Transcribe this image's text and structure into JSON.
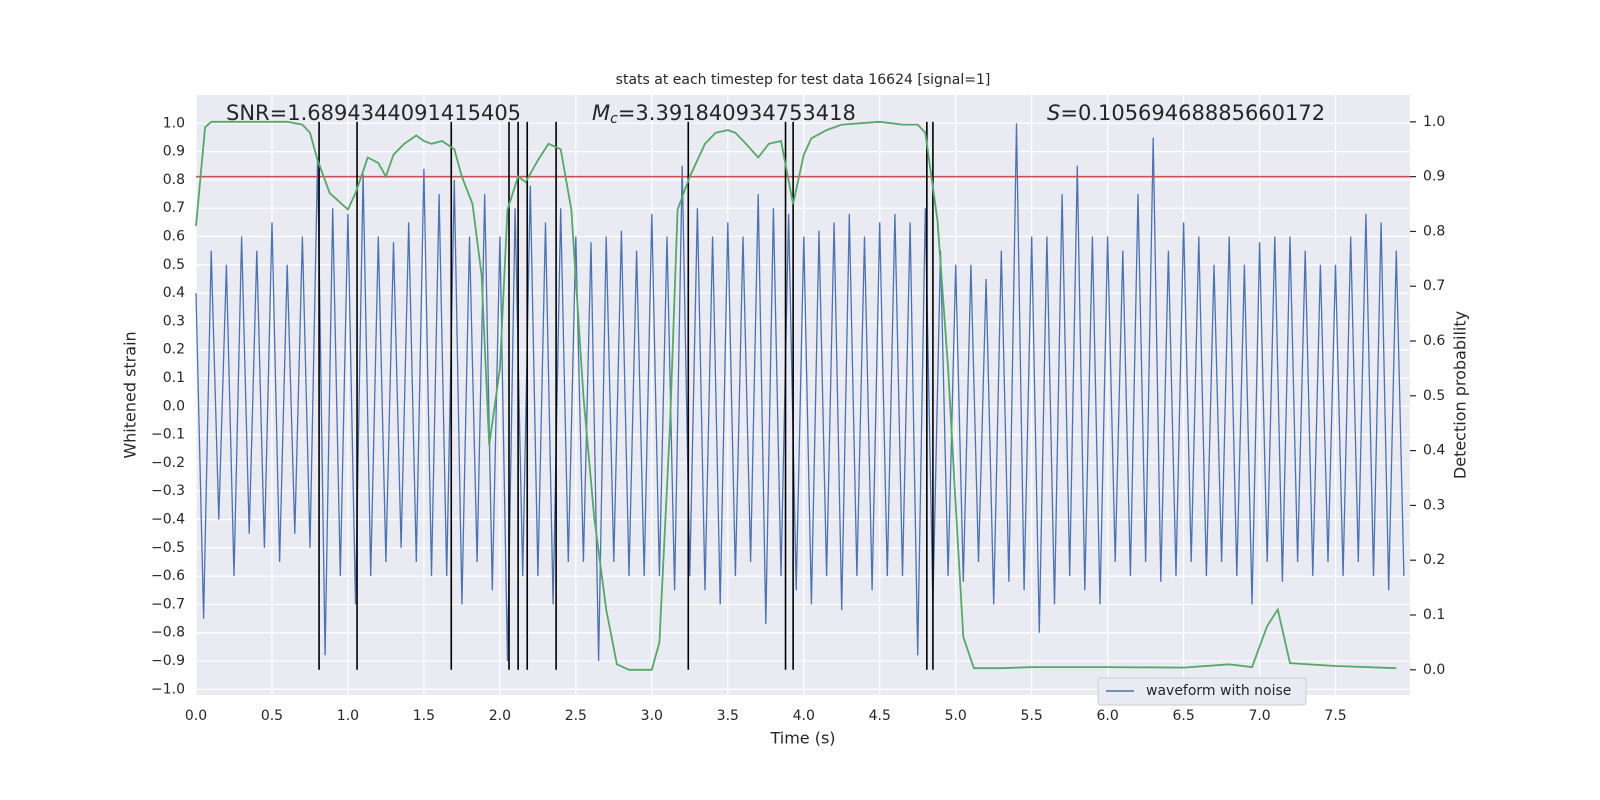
{
  "chart_data": {
    "type": "line",
    "title": "stats at each timestep for test data 16624 [signal=1]",
    "xlabel": "Time (s)",
    "ylabel": "Whitened strain",
    "y2label": "Detection probability",
    "annotations": {
      "snr": "SNR=1.6894344091415405",
      "mc": {
        "symbol": "M",
        "subscript": "c",
        "text": "=3.391840934753418"
      },
      "s": {
        "symbol": "S",
        "text": "=0.10569468885660172"
      }
    },
    "xlim": [
      0,
      7.99
    ],
    "ylim": [
      -1.02,
      1.1
    ],
    "y2lim": [
      -0.046,
      1.049
    ],
    "grid": true,
    "legend": "lower right",
    "xticks": [
      {
        "value": 0,
        "label": "0.0"
      },
      {
        "value": 0.5,
        "label": "0.5"
      },
      {
        "value": 1,
        "label": "1.0"
      },
      {
        "value": 1.5,
        "label": "1.5"
      },
      {
        "value": 2,
        "label": "2.0"
      },
      {
        "value": 2.5,
        "label": "2.5"
      },
      {
        "value": 3,
        "label": "3.0"
      },
      {
        "value": 3.5,
        "label": "3.5"
      },
      {
        "value": 4,
        "label": "4.0"
      },
      {
        "value": 4.5,
        "label": "4.5"
      },
      {
        "value": 5,
        "label": "5.0"
      },
      {
        "value": 5.5,
        "label": "5.5"
      },
      {
        "value": 6,
        "label": "6.0"
      },
      {
        "value": 6.5,
        "label": "6.5"
      },
      {
        "value": 7,
        "label": "7.0"
      },
      {
        "value": 7.5,
        "label": "7.5"
      }
    ],
    "yticks": [
      {
        "value": 1,
        "label": "1.0"
      },
      {
        "value": 0.9,
        "label": "0.9"
      },
      {
        "value": 0.8,
        "label": "0.8"
      },
      {
        "value": 0.7,
        "label": "0.7"
      },
      {
        "value": 0.6,
        "label": "0.6"
      },
      {
        "value": 0.5,
        "label": "0.5"
      },
      {
        "value": 0.4,
        "label": "0.4"
      },
      {
        "value": 0.3,
        "label": "0.3"
      },
      {
        "value": 0.2,
        "label": "0.2"
      },
      {
        "value": 0.1,
        "label": "0.1"
      },
      {
        "value": 0,
        "label": "0.0"
      },
      {
        "value": -0.1,
        "label": "−0.1"
      },
      {
        "value": -0.2,
        "label": "−0.2"
      },
      {
        "value": -0.3,
        "label": "−0.3"
      },
      {
        "value": -0.4,
        "label": "−0.4"
      },
      {
        "value": -0.5,
        "label": "−0.5"
      },
      {
        "value": -0.6,
        "label": "−0.6"
      },
      {
        "value": -0.7,
        "label": "−0.7"
      },
      {
        "value": -0.8,
        "label": "−0.8"
      },
      {
        "value": -0.9,
        "label": "−0.9"
      },
      {
        "value": -1,
        "label": "−1.0"
      }
    ],
    "y2ticks": [
      {
        "value": 0,
        "label": "0.0"
      },
      {
        "value": 0.1,
        "label": "0.1"
      },
      {
        "value": 0.2,
        "label": "0.2"
      },
      {
        "value": 0.3,
        "label": "0.3"
      },
      {
        "value": 0.4,
        "label": "0.4"
      },
      {
        "value": 0.5,
        "label": "0.5"
      },
      {
        "value": 0.6,
        "label": "0.6"
      },
      {
        "value": 0.7,
        "label": "0.7"
      },
      {
        "value": 0.8,
        "label": "0.8"
      },
      {
        "value": 0.9,
        "label": "0.9"
      },
      {
        "value": 1,
        "label": "1.0"
      }
    ],
    "threshold": {
      "value": 0.9,
      "color": "#c44e52",
      "axis": "y2"
    },
    "event_lines": {
      "color": "#000000",
      "x": [
        0.81,
        1.06,
        1.68,
        2.06,
        2.12,
        2.18,
        2.37,
        3.24,
        3.88,
        3.93,
        4.81,
        4.85
      ]
    },
    "series": [
      {
        "name": "waveform with noise",
        "color": "#4c72b0",
        "x": [
          0,
          0.05,
          0.1,
          0.15,
          0.2,
          0.25,
          0.3,
          0.35,
          0.4,
          0.45,
          0.5,
          0.55,
          0.6,
          0.65,
          0.7,
          0.75,
          0.8,
          0.85,
          0.9,
          0.95,
          1,
          1.05,
          1.1,
          1.15,
          1.2,
          1.25,
          1.3,
          1.35,
          1.4,
          1.45,
          1.5,
          1.55,
          1.6,
          1.65,
          1.7,
          1.75,
          1.8,
          1.85,
          1.9,
          1.95,
          2,
          2.05,
          2.1,
          2.15,
          2.2,
          2.25,
          2.3,
          2.35,
          2.4,
          2.45,
          2.5,
          2.55,
          2.6,
          2.65,
          2.7,
          2.75,
          2.8,
          2.85,
          2.9,
          2.95,
          3,
          3.05,
          3.1,
          3.15,
          3.2,
          3.25,
          3.3,
          3.35,
          3.4,
          3.45,
          3.5,
          3.55,
          3.6,
          3.65,
          3.7,
          3.75,
          3.8,
          3.85,
          3.9,
          3.95,
          4,
          4.05,
          4.1,
          4.15,
          4.2,
          4.25,
          4.3,
          4.35,
          4.4,
          4.45,
          4.5,
          4.55,
          4.6,
          4.65,
          4.7,
          4.75,
          4.8,
          4.85,
          4.9,
          4.95,
          5,
          5.05,
          5.1,
          5.15,
          5.2,
          5.25,
          5.3,
          5.35,
          5.4,
          5.45,
          5.5,
          5.55,
          5.6,
          5.65,
          5.7,
          5.75,
          5.8,
          5.85,
          5.9,
          5.95,
          6,
          6.05,
          6.1,
          6.15,
          6.2,
          6.25,
          6.3,
          6.35,
          6.4,
          6.45,
          6.5,
          6.55,
          6.6,
          6.65,
          6.7,
          6.75,
          6.8,
          6.85,
          6.9,
          6.95,
          7,
          7.05,
          7.1,
          7.15,
          7.2,
          7.25,
          7.3,
          7.35,
          7.4,
          7.45,
          7.5,
          7.55,
          7.6,
          7.65,
          7.7,
          7.75,
          7.8,
          7.85,
          7.9,
          7.95
        ],
        "values": [
          0.4,
          -0.75,
          0.55,
          -0.4,
          0.5,
          -0.6,
          0.6,
          -0.45,
          0.55,
          -0.5,
          0.65,
          -0.55,
          0.5,
          -0.45,
          0.6,
          -0.5,
          0.88,
          -0.88,
          0.7,
          -0.6,
          0.68,
          -0.7,
          0.82,
          -0.6,
          0.6,
          -0.55,
          0.58,
          -0.5,
          0.65,
          -0.55,
          0.84,
          -0.6,
          0.75,
          -0.6,
          0.8,
          -0.7,
          0.6,
          -0.55,
          0.75,
          -0.65,
          0.6,
          -0.9,
          0.7,
          -0.6,
          0.78,
          -0.6,
          0.65,
          -0.7,
          0.7,
          -0.55,
          0.6,
          -0.55,
          0.58,
          -0.9,
          0.6,
          -0.55,
          0.62,
          -0.6,
          0.55,
          -0.6,
          0.68,
          -0.6,
          0.6,
          -0.65,
          0.85,
          -0.6,
          0.7,
          -0.65,
          0.6,
          -0.7,
          0.65,
          -0.6,
          0.6,
          -0.55,
          0.75,
          -0.77,
          0.7,
          -0.6,
          0.68,
          -0.65,
          0.6,
          -0.7,
          0.62,
          -0.6,
          0.65,
          -0.72,
          0.68,
          -0.6,
          0.6,
          -0.65,
          0.65,
          -0.6,
          0.68,
          -0.6,
          0.65,
          -0.88,
          0.7,
          -0.7,
          0.55,
          -0.6,
          0.5,
          -0.62,
          0.5,
          -0.55,
          0.45,
          -0.7,
          0.55,
          -0.62,
          1.0,
          -0.65,
          0.6,
          -0.8,
          0.6,
          -0.7,
          0.75,
          -0.6,
          0.85,
          -0.65,
          0.6,
          -0.7,
          0.6,
          -0.55,
          0.55,
          -0.6,
          0.75,
          -0.55,
          0.95,
          -0.62,
          0.55,
          -0.6,
          0.65,
          -0.55,
          0.6,
          -0.6,
          0.5,
          -0.55,
          0.6,
          -0.6,
          0.5,
          -0.7,
          0.58,
          -0.55,
          0.6,
          -0.62,
          0.6,
          -0.55,
          0.55,
          -0.6,
          0.5,
          -0.55,
          0.5,
          -0.6,
          0.6,
          -0.55,
          0.68,
          -0.6,
          0.65,
          -0.65,
          0.55,
          -0.6
        ]
      },
      {
        "color": "#55a868",
        "axis": "y2",
        "x": [
          0,
          0.06,
          0.1,
          0.6,
          0.7,
          0.75,
          0.8,
          0.88,
          1,
          1.05,
          1.1,
          1.13,
          1.2,
          1.25,
          1.3,
          1.37,
          1.45,
          1.5,
          1.55,
          1.62,
          1.7,
          1.75,
          1.82,
          1.88,
          1.93,
          2,
          2.05,
          2.12,
          2.17,
          2.25,
          2.32,
          2.4,
          2.47,
          2.55,
          2.62,
          2.7,
          2.77,
          2.85,
          3,
          3.05,
          3.12,
          3.17,
          3.25,
          3.35,
          3.42,
          3.5,
          3.55,
          3.62,
          3.7,
          3.77,
          3.85,
          3.93,
          4,
          4.05,
          4.15,
          4.25,
          4.5,
          4.65,
          4.75,
          4.8,
          4.88,
          4.95,
          5,
          5.05,
          5.12,
          5.3,
          5.5,
          6,
          6.5,
          6.8,
          6.95,
          7.05,
          7.12,
          7.2,
          7.5,
          7.9
        ],
        "values": [
          0.81,
          0.99,
          1.0,
          1.0,
          0.995,
          0.98,
          0.93,
          0.87,
          0.84,
          0.87,
          0.91,
          0.935,
          0.925,
          0.9,
          0.94,
          0.96,
          0.975,
          0.965,
          0.96,
          0.965,
          0.95,
          0.9,
          0.85,
          0.72,
          0.41,
          0.55,
          0.84,
          0.9,
          0.89,
          0.93,
          0.96,
          0.95,
          0.84,
          0.5,
          0.28,
          0.11,
          0.01,
          0.0,
          0.0,
          0.05,
          0.45,
          0.84,
          0.9,
          0.96,
          0.98,
          0.985,
          0.98,
          0.96,
          0.935,
          0.96,
          0.965,
          0.85,
          0.94,
          0.97,
          0.985,
          0.995,
          1.0,
          0.995,
          0.995,
          0.98,
          0.82,
          0.55,
          0.3,
          0.06,
          0.003,
          0.003,
          0.005,
          0.005,
          0.004,
          0.01,
          0.005,
          0.08,
          0.11,
          0.012,
          0.007,
          0.003
        ]
      }
    ]
  }
}
